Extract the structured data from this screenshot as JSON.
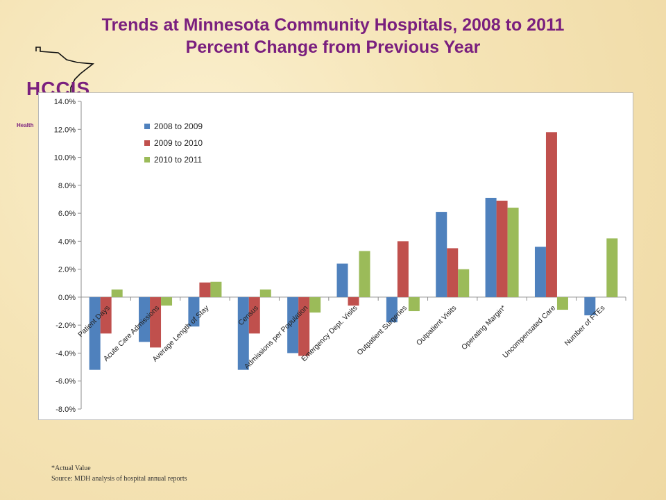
{
  "slide": {
    "title_line1": "Trends at Minnesota Community Hospitals, 2008 to 2011",
    "title_line2": "Percent Change from Previous Year",
    "logo_text": "HCCIS",
    "logo_subtext": "Health",
    "footnote_actual": "*Actual Value",
    "footnote_source": "Source:  MDH analysis of hospital annual reports"
  },
  "chart_data": {
    "type": "bar",
    "title": "",
    "xlabel": "",
    "ylabel": "",
    "ylim": [
      -8,
      14
    ],
    "y_ticks": [
      -8,
      -6,
      -4,
      -2,
      0,
      2,
      4,
      6,
      8,
      10,
      12,
      14
    ],
    "y_tick_format": "percent_1dp",
    "grid": false,
    "legend_position": "top-left",
    "categories": [
      "Patient Days",
      "Acute Care Admissions",
      "Average Length of Stay",
      "Census",
      "Admissions per Population",
      "Emergency Dept. Visits",
      "Outpatient Surgeries",
      "Outpatient Visits",
      "Operating Margin*",
      "Uncompensated Care",
      "Number of FTEs"
    ],
    "series": [
      {
        "name": "2008 to 2009",
        "color": "#4f81bd",
        "values": [
          -5.2,
          -3.2,
          -2.1,
          -5.2,
          -4.0,
          2.4,
          -1.8,
          6.1,
          7.1,
          3.6,
          -1.3
        ]
      },
      {
        "name": "2009 to 2010",
        "color": "#c0504d",
        "values": [
          -2.6,
          -3.6,
          1.05,
          -2.6,
          -4.2,
          -0.6,
          4.0,
          3.5,
          6.9,
          11.8,
          0
        ]
      },
      {
        "name": "2010 to 2011",
        "color": "#9bbb59",
        "values": [
          0.55,
          -0.6,
          1.1,
          0.55,
          -1.1,
          3.3,
          -1.0,
          2.0,
          6.4,
          -0.9,
          4.2
        ]
      }
    ]
  }
}
